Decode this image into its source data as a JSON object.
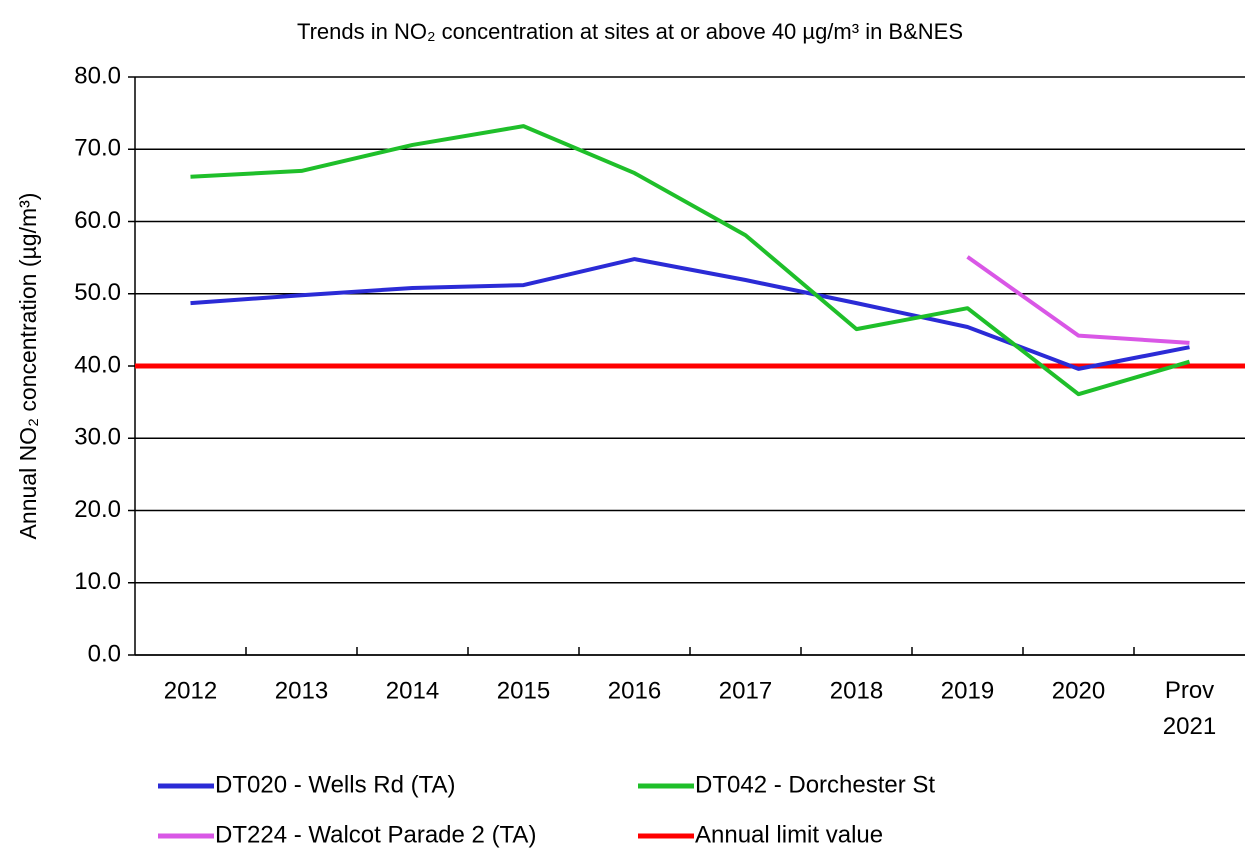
{
  "chart_data": {
    "type": "line",
    "title": "Trends in NO₂ concentration at sites at or above 40 µg/m³ in B&NES",
    "y_label": "Annual NO₂ concentration (µg/m³)",
    "categories": [
      "2012",
      "2013",
      "2014",
      "2015",
      "2016",
      "2017",
      "2018",
      "2019",
      "2020",
      "Prov 2021"
    ],
    "series": [
      {
        "name": "DT020 - Wells Rd (TA)",
        "color": "#2b2bd6",
        "values": [
          48.7,
          49.8,
          50.8,
          51.2,
          54.8,
          51.9,
          48.7,
          45.4,
          39.6,
          42.6
        ]
      },
      {
        "name": "DT042 - Dorchester St",
        "color": "#1fbf2a",
        "values": [
          66.2,
          67.0,
          70.6,
          73.2,
          66.7,
          58.1,
          45.1,
          48.0,
          36.1,
          40.6
        ]
      },
      {
        "name": "DT224 - Walcot Parade 2 (TA)",
        "color": "#d957e6",
        "values": [
          null,
          null,
          null,
          null,
          null,
          null,
          null,
          55.1,
          44.2,
          43.2
        ]
      }
    ],
    "reference_lines": [
      {
        "name": "Annual limit value",
        "value": 40,
        "color": "#ff0000"
      }
    ],
    "ylim": [
      0,
      80
    ],
    "yticks": [
      {
        "value": 0,
        "label": "0.0"
      },
      {
        "value": 10,
        "label": "10.0"
      },
      {
        "value": 20,
        "label": "20.0"
      },
      {
        "value": 30,
        "label": "30.0"
      },
      {
        "value": 40,
        "label": "40.0"
      },
      {
        "value": 50,
        "label": "50.0"
      },
      {
        "value": 60,
        "label": "60.0"
      },
      {
        "value": 70,
        "label": "70.0"
      },
      {
        "value": 80,
        "label": "80.0"
      }
    ],
    "grid": true
  }
}
